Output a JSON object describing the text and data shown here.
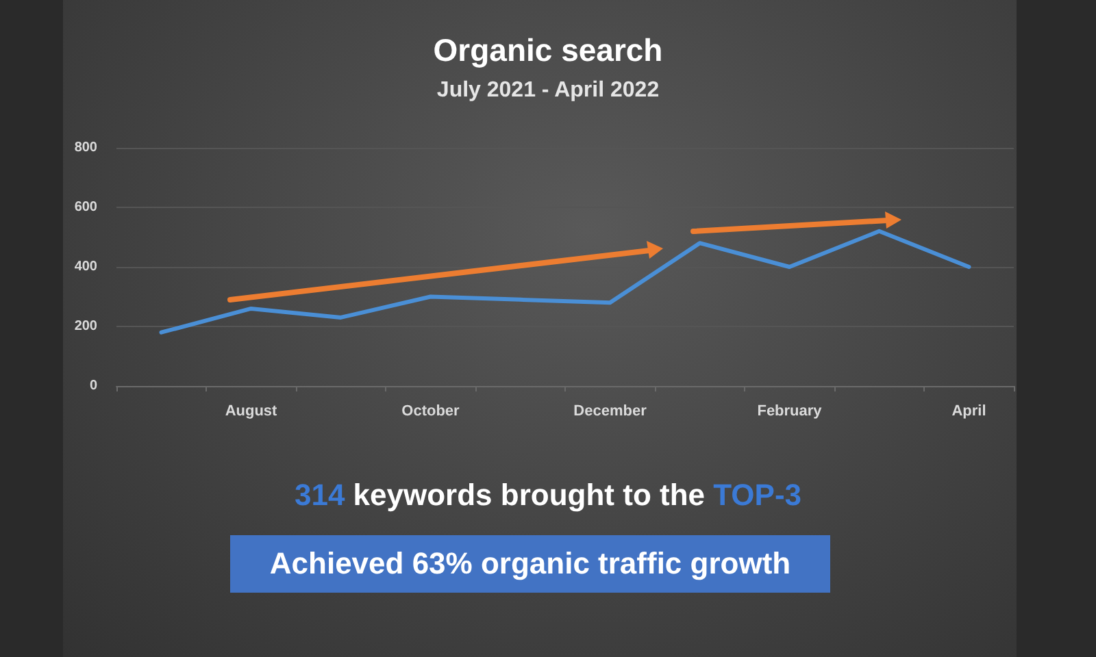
{
  "chart_data": {
    "type": "line",
    "title": "Organic search",
    "subtitle": "July 2021 - April 2022",
    "categories": [
      null,
      "August",
      null,
      "October",
      null,
      "December",
      null,
      "February",
      null,
      "April"
    ],
    "values": [
      180,
      260,
      230,
      300,
      290,
      280,
      480,
      400,
      520,
      400
    ],
    "color": "#4a8fd6",
    "ylim": [
      0,
      800
    ],
    "yticks": [
      0,
      200,
      400,
      600,
      800
    ],
    "grid": "y",
    "marker": "none",
    "line_style": "solid",
    "annotations": [
      "314 keywords brought to the TOP-3",
      "Achieved 63% organic traffic growth"
    ]
  }
}
